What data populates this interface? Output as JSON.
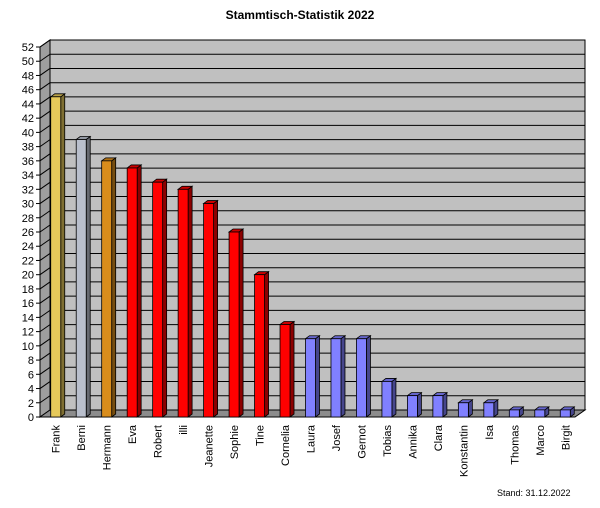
{
  "chart_data": {
    "type": "bar",
    "title": "Stammtisch-Statistik  2022",
    "categories": [
      "Frank",
      "Berni",
      "Hermann",
      "Eva",
      "Robert",
      "illi",
      "Jeanette",
      "Sophie",
      "Tine",
      "Cornelia",
      "Laura",
      "Josef",
      "Gernot",
      "Tobias",
      "Annika",
      "Clara",
      "Konstantin",
      "Isa",
      "Thomas",
      "Marco",
      "Birgit"
    ],
    "values": [
      45,
      39,
      36,
      35,
      33,
      32,
      30,
      26,
      20,
      13,
      11,
      11,
      11,
      5,
      3,
      3,
      2,
      2,
      1,
      1,
      1
    ],
    "bar_colors": [
      "#e6c95a",
      "#b9bfcc",
      "#d98d1c",
      "#ff0000",
      "#ff0000",
      "#ff0000",
      "#ff0000",
      "#ff0000",
      "#ff0000",
      "#ff0000",
      "#8080ff",
      "#8080ff",
      "#8080ff",
      "#8080ff",
      "#8080ff",
      "#8080ff",
      "#8080ff",
      "#8080ff",
      "#8080ff",
      "#8080ff",
      "#8080ff"
    ],
    "ylim": [
      0,
      52
    ],
    "ytick_step": 2,
    "grid": true,
    "plot_background": "#c0c0c0",
    "note": "Stand: 31.12.2022"
  }
}
